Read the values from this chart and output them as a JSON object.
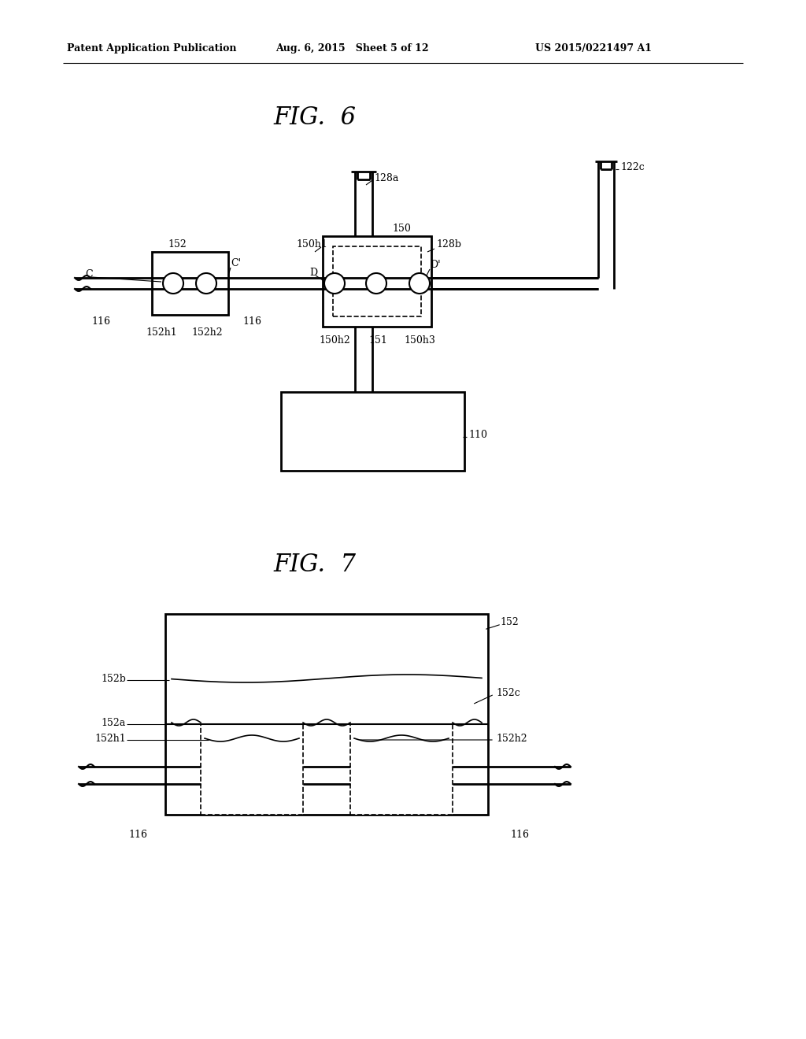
{
  "bg_color": "#ffffff",
  "header_left": "Patent Application Publication",
  "header_mid": "Aug. 6, 2015   Sheet 5 of 12",
  "header_right": "US 2015/0221497 A1",
  "fig6_title": "FIG.  6",
  "fig7_title": "FIG.  7",
  "line_color": "#000000",
  "text_color": "#000000"
}
